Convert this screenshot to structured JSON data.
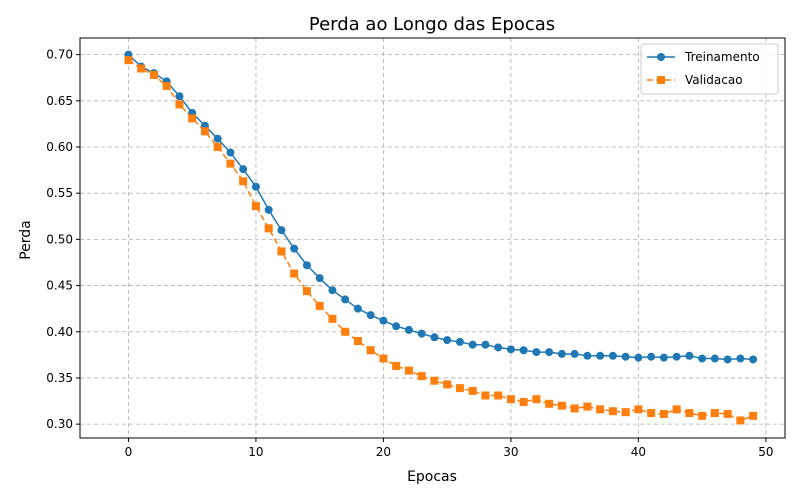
{
  "chart_data": {
    "type": "line",
    "title": "Perda ao Longo das Epocas",
    "xlabel": "Epocas",
    "ylabel": "Perda",
    "xlim": [
      -3.8,
      51.5
    ],
    "ylim": [
      0.285,
      0.718
    ],
    "xticks": [
      0,
      10,
      20,
      30,
      40,
      50
    ],
    "xtick_labels": [
      "0",
      "10",
      "20",
      "30",
      "40",
      "50"
    ],
    "yticks": [
      0.3,
      0.35,
      0.4,
      0.45,
      0.5,
      0.55,
      0.6,
      0.65,
      0.7
    ],
    "ytick_labels": [
      "0.30",
      "0.35",
      "0.40",
      "0.45",
      "0.50",
      "0.55",
      "0.60",
      "0.65",
      "0.70"
    ],
    "grid": true,
    "legend_position": "top-right",
    "x": [
      0,
      1,
      2,
      3,
      4,
      5,
      6,
      7,
      8,
      9,
      10,
      11,
      12,
      13,
      14,
      15,
      16,
      17,
      18,
      19,
      20,
      21,
      22,
      23,
      24,
      25,
      26,
      27,
      28,
      29,
      30,
      31,
      32,
      33,
      34,
      35,
      36,
      37,
      38,
      39,
      40,
      41,
      42,
      43,
      44,
      45,
      46,
      47,
      48,
      49
    ],
    "series": [
      {
        "name": "Treinamento",
        "color": "#1f77b4",
        "marker": "circle",
        "linestyle": "solid",
        "values": [
          0.7,
          0.687,
          0.68,
          0.671,
          0.655,
          0.637,
          0.623,
          0.609,
          0.594,
          0.576,
          0.557,
          0.532,
          0.51,
          0.49,
          0.472,
          0.458,
          0.445,
          0.435,
          0.425,
          0.418,
          0.412,
          0.406,
          0.402,
          0.398,
          0.394,
          0.391,
          0.389,
          0.386,
          0.386,
          0.383,
          0.381,
          0.38,
          0.378,
          0.378,
          0.376,
          0.376,
          0.374,
          0.374,
          0.374,
          0.373,
          0.372,
          0.373,
          0.372,
          0.373,
          0.374,
          0.371,
          0.371,
          0.37,
          0.371,
          0.37
        ]
      },
      {
        "name": "Validacao",
        "color": "#ff7f0e",
        "marker": "square",
        "linestyle": "dashed",
        "values": [
          0.694,
          0.685,
          0.678,
          0.666,
          0.646,
          0.631,
          0.617,
          0.6,
          0.582,
          0.563,
          0.536,
          0.512,
          0.487,
          0.463,
          0.444,
          0.428,
          0.414,
          0.4,
          0.39,
          0.38,
          0.371,
          0.363,
          0.358,
          0.352,
          0.347,
          0.343,
          0.339,
          0.336,
          0.331,
          0.331,
          0.327,
          0.324,
          0.327,
          0.322,
          0.32,
          0.317,
          0.319,
          0.316,
          0.314,
          0.313,
          0.316,
          0.312,
          0.311,
          0.316,
          0.312,
          0.309,
          0.312,
          0.311,
          0.304,
          0.309
        ]
      }
    ]
  }
}
